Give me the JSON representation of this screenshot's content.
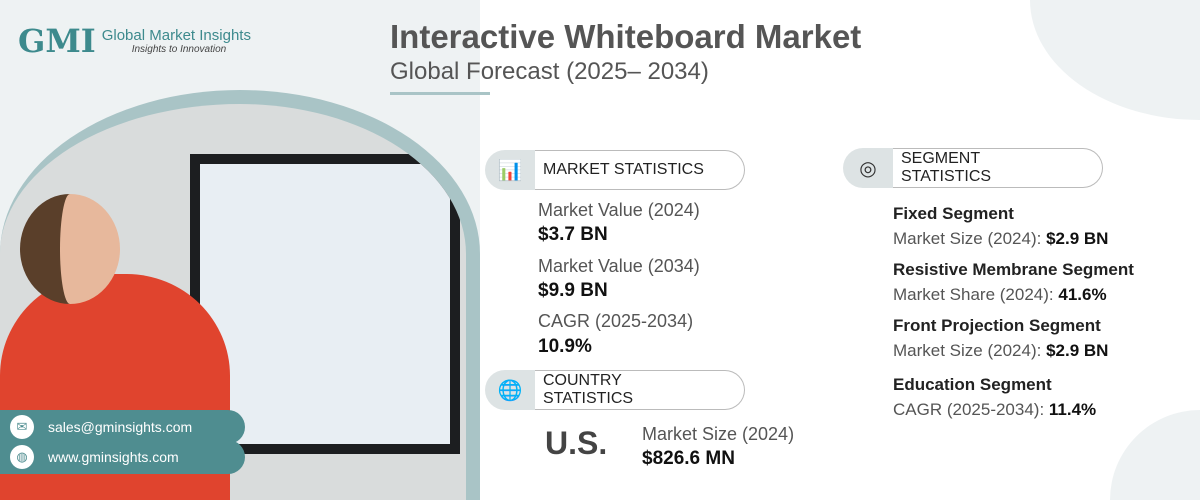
{
  "brand": {
    "logo": "GMI",
    "name": "Global Market Insights",
    "tagline": "Insights to Innovation"
  },
  "header": {
    "title": "Interactive Whiteboard Market",
    "subtitle": "Global Forecast (2025– 2034)"
  },
  "market": {
    "heading": "MARKET STATISTICS",
    "items": [
      {
        "label": "Market Value (2024)",
        "value": "$3.7 BN"
      },
      {
        "label": "Market Value (2034)",
        "value": "$9.9 BN"
      },
      {
        "label": "CAGR (2025-2034)",
        "value": "10.9%"
      }
    ]
  },
  "country": {
    "heading": "COUNTRY STATISTICS",
    "name": "U.S.",
    "label": "Market Size (2024)",
    "value": "$826.6 MN"
  },
  "segment": {
    "heading": "SEGMENT STATISTICS",
    "items": [
      {
        "name": "Fixed Segment",
        "label": "Market Size (2024): ",
        "value": "$2.9 BN"
      },
      {
        "name": "Resistive Membrane Segment",
        "label": "Market Share (2024): ",
        "value": "41.6%"
      },
      {
        "name": "Front Projection Segment",
        "label": "Market Size (2024): ",
        "value": "$2.9 BN"
      },
      {
        "name": "Education Segment",
        "label": "CAGR (2025-2034): ",
        "value": "11.4%"
      }
    ]
  },
  "contact": {
    "email": "sales@gminsights.com",
    "web": "www.gminsights.com"
  }
}
